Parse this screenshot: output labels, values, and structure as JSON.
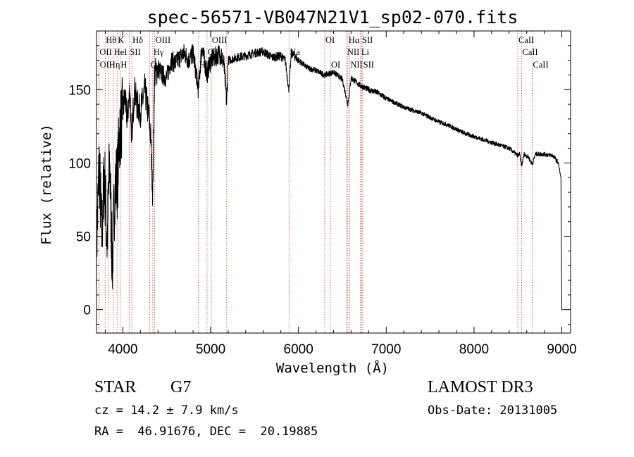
{
  "chart_data": {
    "type": "line",
    "title": "spec-56571-VB047N21V1_sp02-070.fits",
    "xlabel": "Wavelength (Å)",
    "ylabel": "Flux (relative)",
    "xlim": [
      3700,
      9100
    ],
    "ylim": [
      -16,
      190
    ],
    "xticks": [
      4000,
      5000,
      6000,
      7000,
      8000,
      9000
    ],
    "yticks": [
      0,
      50,
      100,
      150
    ],
    "spectrum_anchors": [
      [
        3700,
        40
      ],
      [
        3730,
        100
      ],
      [
        3760,
        50
      ],
      [
        3790,
        95
      ],
      [
        3820,
        45
      ],
      [
        3850,
        100
      ],
      [
        3880,
        30
      ],
      [
        3910,
        85
      ],
      [
        3940,
        90
      ],
      [
        3960,
        120
      ],
      [
        3990,
        130
      ],
      [
        4020,
        145
      ],
      [
        4050,
        130
      ],
      [
        4080,
        150
      ],
      [
        4101,
        115
      ],
      [
        4130,
        150
      ],
      [
        4160,
        140
      ],
      [
        4200,
        135
      ],
      [
        4250,
        150
      ],
      [
        4300,
        130
      ],
      [
        4320,
        115
      ],
      [
        4340,
        78
      ],
      [
        4360,
        160
      ],
      [
        4400,
        165
      ],
      [
        4450,
        160
      ],
      [
        4500,
        158
      ],
      [
        4550,
        170
      ],
      [
        4600,
        168
      ],
      [
        4650,
        172
      ],
      [
        4700,
        175
      ],
      [
        4750,
        170
      ],
      [
        4800,
        175
      ],
      [
        4861,
        150
      ],
      [
        4900,
        180
      ],
      [
        4957,
        160
      ],
      [
        5000,
        170
      ],
      [
        5050,
        172
      ],
      [
        5100,
        175
      ],
      [
        5150,
        168
      ],
      [
        5183,
        140
      ],
      [
        5200,
        170
      ],
      [
        5300,
        172
      ],
      [
        5400,
        173
      ],
      [
        5500,
        175
      ],
      [
        5600,
        176
      ],
      [
        5700,
        172
      ],
      [
        5800,
        173
      ],
      [
        5850,
        170
      ],
      [
        5890,
        150
      ],
      [
        5920,
        175
      ],
      [
        6000,
        170
      ],
      [
        6100,
        165
      ],
      [
        6200,
        163
      ],
      [
        6300,
        160
      ],
      [
        6400,
        162
      ],
      [
        6500,
        157
      ],
      [
        6563,
        140
      ],
      [
        6600,
        158
      ],
      [
        6700,
        153
      ],
      [
        6800,
        150
      ],
      [
        6900,
        148
      ],
      [
        7000,
        144
      ],
      [
        7100,
        141
      ],
      [
        7200,
        138
      ],
      [
        7300,
        136
      ],
      [
        7400,
        134
      ],
      [
        7500,
        131
      ],
      [
        7600,
        128
      ],
      [
        7700,
        126
      ],
      [
        7800,
        123
      ],
      [
        7900,
        120
      ],
      [
        8000,
        118
      ],
      [
        8100,
        116
      ],
      [
        8200,
        114
      ],
      [
        8300,
        112
      ],
      [
        8400,
        110
      ],
      [
        8498,
        105
      ],
      [
        8520,
        106
      ],
      [
        8542,
        98
      ],
      [
        8570,
        106
      ],
      [
        8620,
        104
      ],
      [
        8662,
        99
      ],
      [
        8700,
        106
      ],
      [
        8800,
        106
      ],
      [
        8900,
        105
      ],
      [
        8960,
        100
      ],
      [
        8990,
        90
      ],
      [
        9000,
        0
      ]
    ],
    "lines": [
      {
        "label": "Hθ",
        "x": 3798,
        "row": 1
      },
      {
        "label": "K",
        "x": 3934,
        "row": 1
      },
      {
        "label": "Hδ",
        "x": 4102,
        "row": 1
      },
      {
        "label": "OIII",
        "x": 4363,
        "row": 1
      },
      {
        "label": "OIII",
        "x": 5007,
        "row": 1
      },
      {
        "label": "OI",
        "x": 6300,
        "row": 1
      },
      {
        "label": "Hα",
        "x": 6563,
        "row": 1
      },
      {
        "label": "SII",
        "x": 6717,
        "row": 1
      },
      {
        "label": "CaII",
        "x": 8498,
        "row": 1
      },
      {
        "label": "OII",
        "x": 3727,
        "row": 2
      },
      {
        "label": "HeI",
        "x": 3889,
        "row": 2
      },
      {
        "label": "SII",
        "x": 4072,
        "row": 2
      },
      {
        "label": "Hγ",
        "x": 4341,
        "row": 2
      },
      {
        "label": "OIII",
        "x": 4959,
        "row": 2
      },
      {
        "label": "Na",
        "x": 5893,
        "row": 2
      },
      {
        "label": "NII",
        "x": 6548,
        "row": 2
      },
      {
        "label": "Li",
        "x": 6708,
        "row": 2
      },
      {
        "label": "CaII",
        "x": 8542,
        "row": 2
      },
      {
        "label": "OII",
        "x": 3729,
        "row": 3
      },
      {
        "label": "Hη",
        "x": 3835,
        "row": 3
      },
      {
        "label": "H",
        "x": 3968,
        "row": 3
      },
      {
        "label": "G",
        "x": 4305,
        "row": 3
      },
      {
        "label": "Hβ",
        "x": 4861,
        "row": 3
      },
      {
        "label": "OI",
        "x": 6364,
        "row": 3
      },
      {
        "label": "NII",
        "x": 6584,
        "row": 3
      },
      {
        "label": "SII",
        "x": 6731,
        "row": 3
      },
      {
        "label": "CaII",
        "x": 8662,
        "row": 3
      }
    ],
    "extra_marker_x": [
      5183
    ]
  },
  "info": {
    "object_class": "STAR",
    "subclass": "G7",
    "survey": "LAMOST DR3",
    "cz": "cz = 14.2 ± 7.9 km/s",
    "obs_date": "Obs-Date: 20131005",
    "coords": "RA =  46.91676, DEC =  20.19885"
  }
}
